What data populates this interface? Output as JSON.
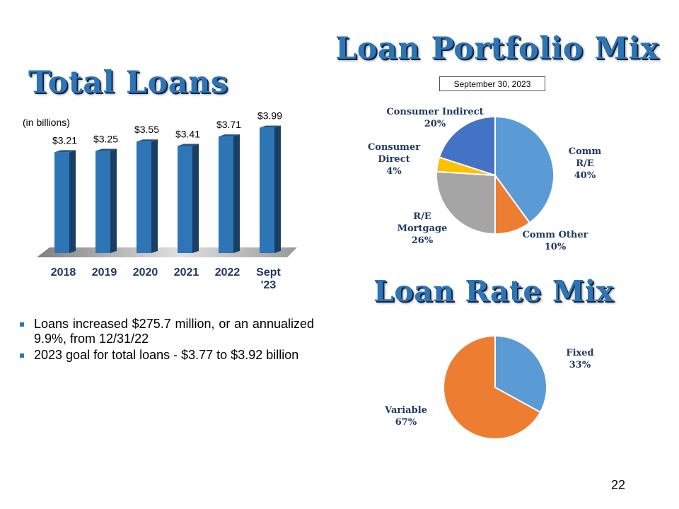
{
  "titles": {
    "total_loans": "Total Loans",
    "portfolio_mix": "Loan Portfolio Mix",
    "rate_mix": "Loan Rate Mix"
  },
  "units_label": "(in billions)",
  "date_box": "September 30, 2023",
  "bullets": [
    "Loans increased $275.7 million, or an annualized 9.9%, from 12/31/22",
    "2023 goal for total loans - $3.77 to $3.92 billion"
  ],
  "page_number": "22",
  "colors": {
    "title": "#2e75b6",
    "bar": "#2e75b6",
    "label": "#1f3864"
  },
  "chart_data": [
    {
      "type": "bar",
      "title": "Total Loans",
      "ylabel": "(in billions)",
      "categories": [
        [
          "2018"
        ],
        [
          "2019"
        ],
        [
          "2020"
        ],
        [
          "2021"
        ],
        [
          "2022"
        ],
        [
          "Sept",
          "'23"
        ]
      ],
      "values": [
        3.21,
        3.25,
        3.55,
        3.41,
        3.71,
        3.99
      ],
      "data_labels": [
        "$3.21",
        "$3.25",
        "$3.55",
        "$3.41",
        "$3.71",
        "$3.99"
      ],
      "ylim": [
        0,
        4.5
      ],
      "grid": false,
      "style": "3d"
    },
    {
      "type": "pie",
      "title": "Loan Portfolio Mix",
      "subtitle": "September 30, 2023",
      "slices": [
        {
          "label": [
            "Comm",
            "R/E",
            "40%"
          ],
          "value": 40,
          "color": "#5b9bd5"
        },
        {
          "label": [
            "Comm Other",
            "10%"
          ],
          "value": 10,
          "color": "#ed7d31"
        },
        {
          "label": [
            "R/E",
            "Mortgage",
            "26%"
          ],
          "value": 26,
          "color": "#a5a5a5"
        },
        {
          "label": [
            "Consumer",
            "Direct",
            "4%"
          ],
          "value": 4,
          "color": "#ffc000"
        },
        {
          "label": [
            "Consumer Indirect",
            "20%"
          ],
          "value": 20,
          "color": "#4472c4"
        }
      ]
    },
    {
      "type": "pie",
      "title": "Loan Rate Mix",
      "slices": [
        {
          "label": [
            "Fixed",
            "33%"
          ],
          "value": 33,
          "color": "#5b9bd5"
        },
        {
          "label": [
            "Variable",
            "67%"
          ],
          "value": 67,
          "color": "#ed7d31"
        }
      ]
    }
  ]
}
